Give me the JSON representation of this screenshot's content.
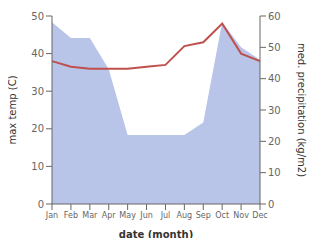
{
  "chart_data": {
    "type": "combo",
    "categories": [
      "Jan",
      "Feb",
      "Mar",
      "Apr",
      "May",
      "Jun",
      "Jul",
      "Aug",
      "Sep",
      "Oct",
      "Nov",
      "Dec"
    ],
    "xlabel": "date (month)",
    "ylabel": "max temp (C)",
    "y2label": "med. precipitation (kg/m2)",
    "ylim": [
      0,
      50
    ],
    "yticks": [
      0,
      10,
      20,
      30,
      40,
      50
    ],
    "y2lim": [
      0,
      60
    ],
    "y2ticks": [
      0,
      10,
      20,
      30,
      40,
      50,
      60
    ],
    "grid": false,
    "series": [
      {
        "type": "area",
        "axis": "y2",
        "color": "#b8c4e8",
        "values": [
          58,
          53,
          53,
          43,
          22,
          22,
          22,
          22,
          26,
          58,
          50,
          46
        ]
      },
      {
        "type": "line",
        "axis": "y",
        "color": "#c0504d",
        "values": [
          38,
          36.5,
          36,
          36,
          36,
          36.5,
          37,
          42,
          43,
          48,
          40,
          38
        ]
      }
    ]
  }
}
